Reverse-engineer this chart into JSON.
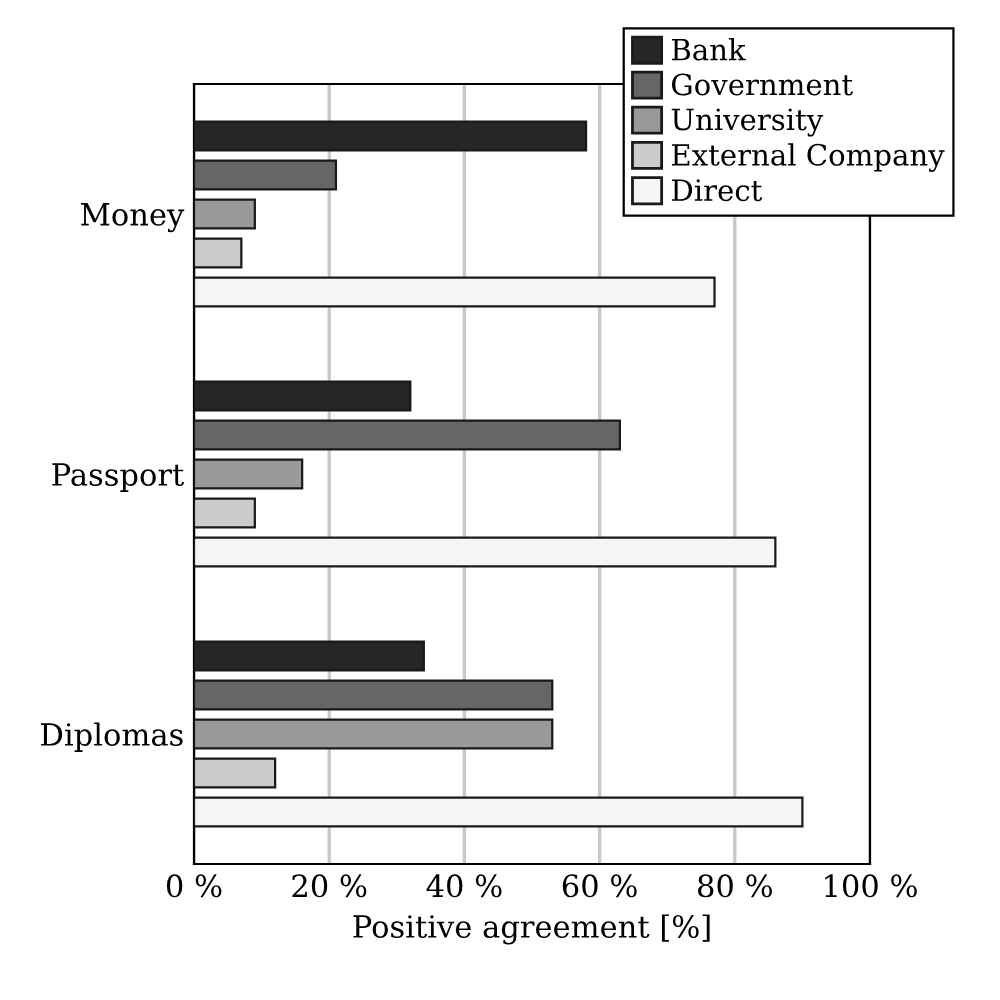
{
  "chart_data": {
    "type": "bar",
    "orientation": "horizontal",
    "xlabel": "Positive agreement [%]",
    "categories": [
      "Money",
      "Passport",
      "Diplomas"
    ],
    "series": [
      {
        "name": "Bank",
        "color": "#262626",
        "values": [
          58,
          32,
          34
        ]
      },
      {
        "name": "Government",
        "color": "#666666",
        "values": [
          21,
          63,
          53
        ]
      },
      {
        "name": "University",
        "color": "#999999",
        "values": [
          9,
          16,
          53
        ]
      },
      {
        "name": "External Company",
        "color": "#cccccc",
        "values": [
          7,
          9,
          12
        ]
      },
      {
        "name": "Direct",
        "color": "#f5f5f5",
        "values": [
          77,
          86,
          90
        ]
      }
    ],
    "xlim": [
      0,
      100
    ],
    "xticks": [
      {
        "value": 0,
        "label": "0 %"
      },
      {
        "value": 20,
        "label": "20 %"
      },
      {
        "value": 40,
        "label": "40 %"
      },
      {
        "value": 60,
        "label": "60 %"
      },
      {
        "value": 80,
        "label": "80 %"
      },
      {
        "value": 100,
        "label": "100 %"
      }
    ],
    "grid": "x",
    "legend": "top right"
  }
}
